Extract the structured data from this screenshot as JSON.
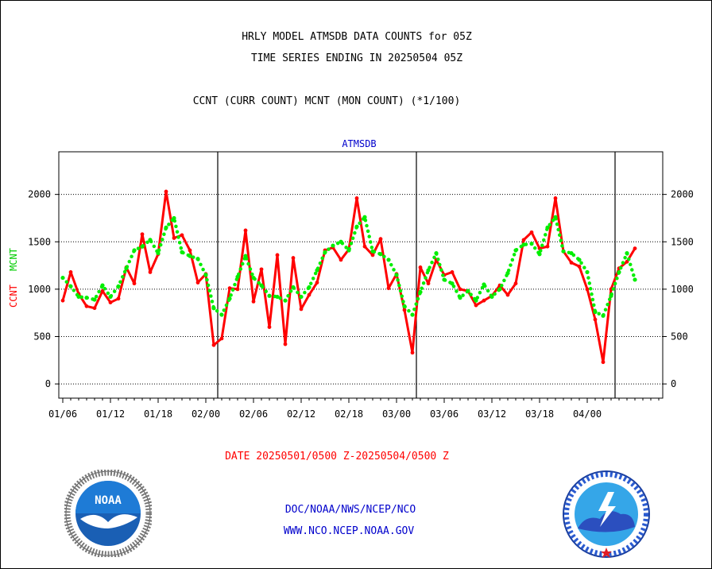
{
  "titles": {
    "line1": "HRLY MODEL ATMSDB DATA COUNTS for 05Z",
    "line2": "TIME SERIES ENDING IN 20250504 05Z",
    "line3": "CCNT (CURR COUNT) MCNT (MON COUNT) (*1/100)"
  },
  "footer": {
    "date_range": "DATE 20250501/0500 Z-20250504/0500 Z",
    "org": "DOC/NOAA/NWS/NCEP/NCO",
    "url": "WWW.NCO.NCEP.NOAA.GOV"
  },
  "logos": {
    "left": {
      "icon": "noaa-logo",
      "text": "NOAA"
    },
    "right": {
      "icon": "nws-logo"
    }
  },
  "chart_data": {
    "type": "line",
    "title": "ATMSDB",
    "ylabel_left": "CCNT",
    "ylabel_left_color": "#ff0000",
    "ylabel_right": "MCNT",
    "ylabel_right_color": "#00cc00",
    "ylim": [
      -150,
      2450
    ],
    "yticks": [
      0,
      500,
      1000,
      1500,
      2000
    ],
    "xlim": [
      0,
      76
    ],
    "grid": true,
    "xtick_labels": [
      {
        "label": "01/06",
        "x": 0.5
      },
      {
        "label": "01/12",
        "x": 6.5
      },
      {
        "label": "01/18",
        "x": 12.5
      },
      {
        "label": "02/00",
        "x": 18.5
      },
      {
        "label": "02/06",
        "x": 24.5
      },
      {
        "label": "02/12",
        "x": 30.5
      },
      {
        "label": "02/18",
        "x": 36.5
      },
      {
        "label": "03/00",
        "x": 42.5
      },
      {
        "label": "03/06",
        "x": 48.5
      },
      {
        "label": "03/12",
        "x": 54.5
      },
      {
        "label": "03/18",
        "x": 60.5
      },
      {
        "label": "04/00",
        "x": 66.5
      }
    ],
    "day_boundaries": [
      20,
      45,
      70
    ],
    "series": [
      {
        "name": "CCNT",
        "color": "#ff0000",
        "style": "solid",
        "values": [
          880,
          1180,
          950,
          820,
          800,
          980,
          860,
          900,
          1230,
          1060,
          1580,
          1180,
          1370,
          2030,
          1540,
          1570,
          1410,
          1070,
          1160,
          410,
          480,
          1010,
          1000,
          1620,
          870,
          1210,
          600,
          1360,
          420,
          1330,
          790,
          940,
          1070,
          1410,
          1440,
          1310,
          1420,
          1960,
          1450,
          1360,
          1530,
          1010,
          1160,
          780,
          330,
          1230,
          1060,
          1310,
          1150,
          1180,
          1000,
          980,
          830,
          880,
          930,
          1040,
          940,
          1060,
          1520,
          1600,
          1430,
          1450,
          1960,
          1400,
          1280,
          1240,
          1000,
          680,
          230,
          1000,
          1220,
          1290,
          1430
        ]
      },
      {
        "name": "MCNT",
        "color": "#00ee00",
        "style": "dotted",
        "values": [
          1120,
          1030,
          920,
          910,
          890,
          1040,
          920,
          1030,
          1220,
          1410,
          1450,
          1520,
          1380,
          1650,
          1750,
          1390,
          1350,
          1320,
          1150,
          800,
          730,
          900,
          1130,
          1350,
          1120,
          1040,
          930,
          920,
          880,
          1020,
          920,
          1020,
          1200,
          1390,
          1460,
          1500,
          1410,
          1660,
          1760,
          1400,
          1370,
          1310,
          1150,
          820,
          730,
          970,
          1200,
          1380,
          1100,
          1060,
          910,
          980,
          880,
          1050,
          920,
          1000,
          1170,
          1410,
          1470,
          1480,
          1370,
          1650,
          1760,
          1400,
          1380,
          1310,
          1180,
          760,
          720,
          930,
          1180,
          1380,
          1100
        ]
      }
    ]
  }
}
